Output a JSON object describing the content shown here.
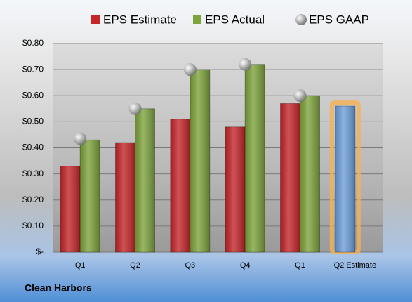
{
  "chart_data": {
    "type": "bar",
    "footer": "Clean Harbors",
    "categories": [
      "Q1",
      "Q2",
      "Q3",
      "Q4",
      "Q1",
      "Q2 Estimate"
    ],
    "series": [
      {
        "name": "EPS Estimate",
        "color": "#c4262a",
        "values": [
          0.33,
          0.42,
          0.51,
          0.48,
          0.57,
          0.56
        ]
      },
      {
        "name": "EPS Actual",
        "color": "#7ea33c",
        "values": [
          0.43,
          0.55,
          0.7,
          0.72,
          0.6,
          null
        ]
      },
      {
        "name": "EPS GAAP",
        "color": "#a6a6a6",
        "marker": "sphere",
        "values": [
          0.435,
          0.55,
          0.7,
          0.72,
          0.6,
          null
        ]
      }
    ],
    "highlight": {
      "index": 5,
      "color": "#6f9fdb",
      "glow": "#f6b053"
    },
    "ylim": [
      0,
      0.8
    ],
    "yticks": [
      {
        "value": 0,
        "label": "$-"
      },
      {
        "value": 0.1,
        "label": "$0.10"
      },
      {
        "value": 0.2,
        "label": "$0.20"
      },
      {
        "value": 0.3,
        "label": "$0.30"
      },
      {
        "value": 0.4,
        "label": "$0.40"
      },
      {
        "value": 0.5,
        "label": "$0.50"
      },
      {
        "value": 0.6,
        "label": "$0.60"
      },
      {
        "value": 0.7,
        "label": "$0.70"
      },
      {
        "value": 0.8,
        "label": "$0.80"
      }
    ],
    "grid": true,
    "legend": "top"
  }
}
